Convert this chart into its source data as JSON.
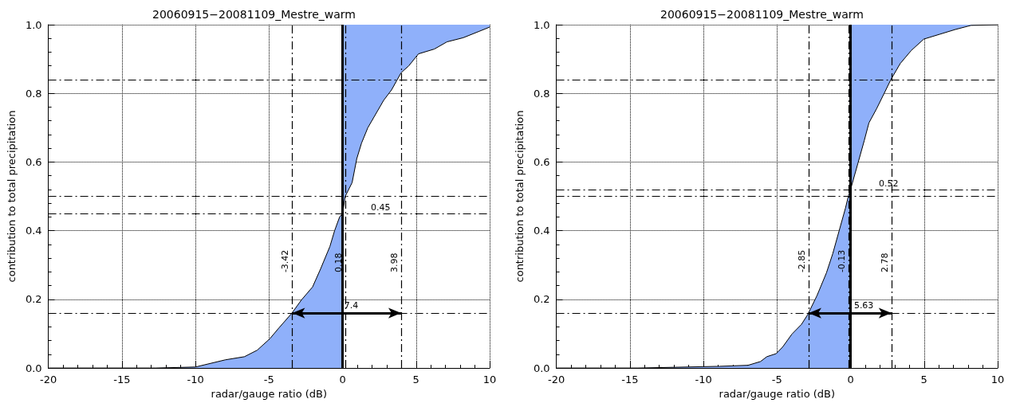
{
  "chart_data": [
    {
      "type": "area",
      "title": "20060915−20081109_Mestre_warm",
      "xlabel": "radar/gauge ratio (dB)",
      "ylabel": "contribution to total precipitation",
      "series": [
        {
          "color": "#8fb0fa",
          "x": [
            -20,
            -12.7,
            -10,
            -7.96,
            -6.67,
            -5.8,
            -4.95,
            -4.3,
            -3.44,
            -2.8,
            -2.04,
            -1.5,
            -0.86,
            -0.54,
            -0.2,
            0
          ],
          "values": [
            0,
            0,
            0.003,
            0.024,
            0.033,
            0.052,
            0.085,
            0.118,
            0.16,
            0.198,
            0.236,
            0.288,
            0.354,
            0.4,
            0.44,
            0.45
          ]
        },
        {
          "type": "line",
          "color": "#000000",
          "x": [
            0,
            0.18,
            0.65,
            0.97,
            1.29,
            1.72,
            2.26,
            2.8,
            3.33,
            3.98,
            4.5,
            5.16,
            6.24,
            7.1,
            8.2,
            9.25,
            10
          ],
          "values": [
            0.45,
            0.5,
            0.54,
            0.61,
            0.655,
            0.7,
            0.74,
            0.78,
            0.81,
            0.86,
            0.88,
            0.915,
            0.929,
            0.95,
            0.962,
            0.98,
            0.993
          ],
          "lower": [
            0.45,
            0.5,
            0.54,
            0.61,
            0.655,
            0.7,
            0.74,
            0.78,
            0.81,
            0.86,
            0.88,
            0.915,
            0.929,
            0.95,
            0.962,
            0.98,
            0.993
          ],
          "upper": [
            1,
            1,
            1,
            1,
            1,
            1,
            1,
            1,
            1,
            1,
            1,
            1,
            1,
            1,
            1,
            1,
            1
          ]
        }
      ],
      "xlim": [
        -20,
        10
      ],
      "xticks": [
        -20,
        -15,
        -10,
        -5,
        0,
        5,
        10
      ],
      "ylim": [
        0,
        1
      ],
      "yticks": [
        {
          "value": 0,
          "label": "0.0"
        },
        {
          "value": 0.2,
          "label": "0.2"
        },
        {
          "value": 0.4,
          "label": "0.4"
        },
        {
          "value": 0.6,
          "label": "0.6"
        },
        {
          "value": 0.8,
          "label": "0.8"
        },
        {
          "value": 1,
          "label": "1.0"
        }
      ],
      "grid": true,
      "ref_lines": [
        {
          "axis": "x",
          "value": 0,
          "line_style": "solid"
        },
        {
          "axis": "x",
          "value": -3.42,
          "label": "-3.42",
          "line_style": "dashed"
        },
        {
          "axis": "x",
          "value": 0.18,
          "label": "0.18",
          "line_style": "dashed"
        },
        {
          "axis": "x",
          "value": 3.98,
          "label": "3.98",
          "line_style": "dashed"
        },
        {
          "axis": "y",
          "value": 0.5,
          "line_style": "dashed"
        },
        {
          "axis": "y",
          "value": 0.45,
          "label": "0.45",
          "line_style": "dashed"
        },
        {
          "axis": "y",
          "value": 0.84,
          "line_style": "dashed"
        },
        {
          "axis": "y",
          "value": 0.16,
          "line_style": "dashed"
        }
      ],
      "annotations": [
        {
          "text": "7.4",
          "x": 0.6,
          "y": 0.16
        }
      ]
    },
    {
      "type": "area",
      "title": "20060915−20081109_Mestre_warm",
      "xlabel": "radar/gauge ratio (dB)",
      "ylabel": "contribution to total precipitation",
      "series": [
        {
          "color": "#8fb0fa",
          "x": [
            -20,
            -14.45,
            -8.9,
            -6.97,
            -6.12,
            -5.69,
            -5.05,
            -4.62,
            -3.98,
            -3.34,
            -2.92,
            -2.28,
            -1.64,
            -1.21,
            -0.78,
            -0.35,
            -0.14,
            0
          ],
          "values": [
            0,
            0,
            0.005,
            0.008,
            0.019,
            0.033,
            0.042,
            0.061,
            0.099,
            0.127,
            0.155,
            0.211,
            0.277,
            0.333,
            0.399,
            0.465,
            0.502,
            0.52
          ]
        },
        {
          "type": "line",
          "color": "#000000",
          "x": [
            0,
            0.5,
            0.93,
            1.25,
            1.78,
            2.32,
            2.74,
            3.38,
            4.13,
            4.98,
            6.05,
            7.12,
            8.19,
            10
          ],
          "values": [
            0.52,
            0.596,
            0.662,
            0.714,
            0.756,
            0.803,
            0.84,
            0.887,
            0.925,
            0.958,
            0.972,
            0.986,
            0.998,
            1
          ],
          "lower": [
            0.52,
            0.596,
            0.662,
            0.714,
            0.756,
            0.803,
            0.84,
            0.887,
            0.925,
            0.958,
            0.972,
            0.986,
            0.998,
            1
          ],
          "upper": [
            1,
            1,
            1,
            1,
            1,
            1,
            1,
            1,
            1,
            1,
            1,
            1,
            1,
            1
          ]
        }
      ],
      "xlim": [
        -20,
        10
      ],
      "xticks": [
        -20,
        -15,
        -10,
        -5,
        0,
        5,
        10
      ],
      "ylim": [
        0,
        1
      ],
      "yticks": [
        {
          "value": 0,
          "label": "0.0"
        },
        {
          "value": 0.2,
          "label": "0.2"
        },
        {
          "value": 0.4,
          "label": "0.4"
        },
        {
          "value": 0.6,
          "label": "0.6"
        },
        {
          "value": 0.8,
          "label": "0.8"
        },
        {
          "value": 1,
          "label": "1.0"
        }
      ],
      "grid": true,
      "ref_lines": [
        {
          "axis": "x",
          "value": 0,
          "line_style": "solid"
        },
        {
          "axis": "x",
          "value": -2.85,
          "label": "-2.85",
          "line_style": "dashed"
        },
        {
          "axis": "x",
          "value": -0.13,
          "label": "-0.13",
          "line_style": "dashed"
        },
        {
          "axis": "x",
          "value": 2.78,
          "label": "2.78",
          "line_style": "dashed"
        },
        {
          "axis": "y",
          "value": 0.5,
          "line_style": "dashed"
        },
        {
          "axis": "y",
          "value": 0.52,
          "label": "0.52",
          "line_style": "dashed"
        },
        {
          "axis": "y",
          "value": 0.84,
          "line_style": "dashed"
        },
        {
          "axis": "y",
          "value": 0.16,
          "line_style": "dashed"
        }
      ],
      "annotations": [
        {
          "text": "5.63",
          "x": 0.9,
          "y": 0.16
        }
      ]
    }
  ]
}
